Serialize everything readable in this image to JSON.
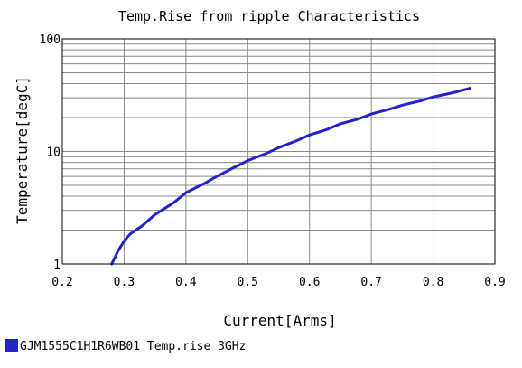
{
  "chart_data": {
    "type": "line",
    "title": "Temp.Rise from ripple Characteristics",
    "xlabel": "Current[Arms]",
    "ylabel": "Temperature[degC]",
    "xlim": [
      0.2,
      0.9
    ],
    "ylim": [
      1,
      100
    ],
    "yscale": "log",
    "grid": true,
    "x_ticks": [
      "0.2",
      "0.3",
      "0.4",
      "0.5",
      "0.6",
      "0.7",
      "0.8",
      "0.9"
    ],
    "y_ticks": [
      "1",
      "10",
      "100"
    ],
    "legend_position": "bottom-left",
    "series": [
      {
        "name": "GJM1555C1H1R6WB01 Temp.rise 3GHz",
        "color": "#2323cc",
        "x": [
          0.28,
          0.29,
          0.3,
          0.31,
          0.33,
          0.35,
          0.38,
          0.4,
          0.43,
          0.45,
          0.48,
          0.5,
          0.53,
          0.55,
          0.58,
          0.6,
          0.63,
          0.65,
          0.68,
          0.7,
          0.73,
          0.75,
          0.78,
          0.8,
          0.83,
          0.86
        ],
        "y": [
          1.0,
          1.3,
          1.6,
          1.85,
          2.2,
          2.75,
          3.5,
          4.3,
          5.2,
          6.0,
          7.3,
          8.3,
          9.6,
          10.8,
          12.5,
          14.0,
          15.8,
          17.6,
          19.5,
          21.5,
          23.8,
          25.8,
          28.2,
          30.5,
          33.0,
          36.5
        ]
      }
    ]
  }
}
